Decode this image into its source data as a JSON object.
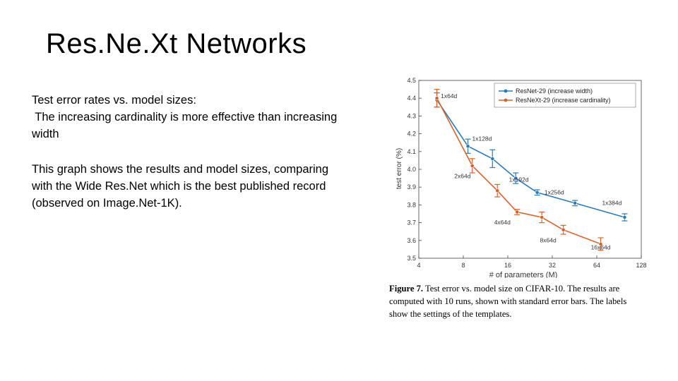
{
  "slide": {
    "title": "Res.Ne.Xt Networks",
    "paragraph1_lines": [
      "Test error rates vs. model sizes:",
      " The increasing cardinality is more effective than increasing",
      "width"
    ],
    "paragraph2_lines": [
      "This graph shows the results and model sizes, comparing",
      "with the Wide Res.Net which is the best published record",
      "(observed on Image.Net-1K)."
    ],
    "caption": {
      "label": "Figure 7.",
      "line1_rest": " Test error vs. model size on CIFAR-10. The results are",
      "line2": "computed with 10 runs, shown with standard error bars. The labels",
      "line3": "show the settings of the templates."
    }
  },
  "chart_data": {
    "type": "line",
    "xlabel": "# of parameters (M)",
    "ylabel": "test error (%)",
    "x_scale": "log2",
    "xlim": [
      4,
      128
    ],
    "ylim": [
      3.5,
      4.5
    ],
    "x_ticks": [
      "4",
      "8",
      "16",
      "32",
      "64",
      "128"
    ],
    "x_tick_values": [
      4,
      8,
      16,
      32,
      64,
      128
    ],
    "y_ticks": [
      "3.5",
      "3.6",
      "3.7",
      "3.8",
      "3.9",
      "4.0",
      "4.1",
      "4.2",
      "4.3",
      "4.4",
      "4.5"
    ],
    "y_tick_values": [
      3.5,
      3.6,
      3.7,
      3.8,
      3.9,
      4.0,
      4.1,
      4.2,
      4.3,
      4.4,
      4.5
    ],
    "legend_position": "top-right",
    "series": [
      {
        "name": "ResNet-29 (increase width)",
        "color": "#2a7ab9",
        "marker": "circle",
        "points": [
          {
            "x": 5.3,
            "y": 4.39,
            "err": 0.04,
            "label": "1x64d"
          },
          {
            "x": 8.6,
            "y": 4.13,
            "err": 0.04,
            "label": "1x128d"
          },
          {
            "x": 12.6,
            "y": 4.06,
            "err": 0.05,
            "label": "1x192d"
          },
          {
            "x": 18.1,
            "y": 3.95,
            "err": 0.03,
            "label": "1x256d"
          },
          {
            "x": 25.3,
            "y": 3.87,
            "err": 0.015,
            "label": "1x384d"
          },
          {
            "x": 45.6,
            "y": 3.81,
            "err": 0.015,
            "label": ""
          },
          {
            "x": 98.8,
            "y": 3.73,
            "err": 0.02,
            "label": ""
          }
        ]
      },
      {
        "name": "ResNeXt-29 (increase cardinality)",
        "color": "#d9622b",
        "marker": "circle",
        "points": [
          {
            "x": 5.3,
            "y": 4.4,
            "err": 0.05,
            "label": ""
          },
          {
            "x": 9.2,
            "y": 4.02,
            "err": 0.04,
            "label": "2x64d"
          },
          {
            "x": 13.6,
            "y": 3.88,
            "err": 0.035,
            "label": "4x64d"
          },
          {
            "x": 18.5,
            "y": 3.76,
            "err": 0.015,
            "label": "8x64d"
          },
          {
            "x": 27.2,
            "y": 3.73,
            "err": 0.03,
            "label": ""
          },
          {
            "x": 38.0,
            "y": 3.66,
            "err": 0.025,
            "label": ""
          },
          {
            "x": 68.0,
            "y": 3.58,
            "err": 0.035,
            "label": "16x64d"
          }
        ]
      }
    ],
    "point_labels": [
      {
        "text": "1x64d",
        "x": 6.4,
        "y": 4.4,
        "color": "#2a7ab9"
      },
      {
        "text": "1x128d",
        "x": 10.7,
        "y": 4.16,
        "color": "#2a7ab9"
      },
      {
        "text": "1x192d",
        "x": 19.0,
        "y": 3.93,
        "color": "#2a7ab9"
      },
      {
        "text": "1x256d",
        "x": 33.0,
        "y": 3.86,
        "color": "#2a7ab9"
      },
      {
        "text": "1x384d",
        "x": 81.0,
        "y": 3.8,
        "color": "#2a7ab9"
      },
      {
        "text": "2x64d",
        "x": 7.9,
        "y": 3.95,
        "color": "#d9622b"
      },
      {
        "text": "4x64d",
        "x": 14.7,
        "y": 3.69,
        "color": "#d9622b"
      },
      {
        "text": "8x64d",
        "x": 30.0,
        "y": 3.59,
        "color": "#d9622b"
      },
      {
        "text": "16x64d",
        "x": 68.0,
        "y": 3.55,
        "color": "#d9622b"
      }
    ]
  }
}
